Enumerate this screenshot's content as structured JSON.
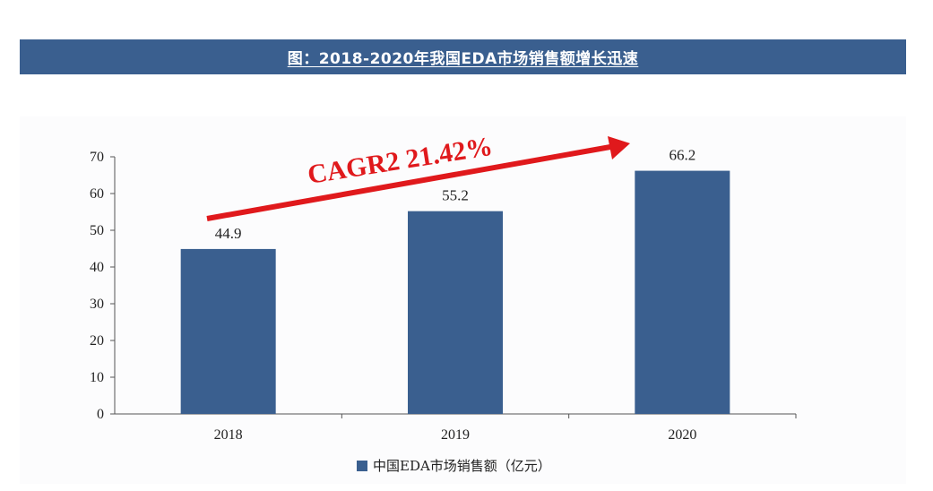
{
  "title": "图：2018-2020年我国EDA市场销售额增长迅速",
  "annotation": "CAGR2 21.42%",
  "colors": {
    "title_bar": "#3a5f8f",
    "bar": "#3a5f8f",
    "arrow": "#e0191c",
    "axis": "#555555"
  },
  "chart_data": {
    "type": "bar",
    "categories": [
      "2018",
      "2019",
      "2020"
    ],
    "series": [
      {
        "name": "中国EDA市场销售额（亿元）",
        "values": [
          44.9,
          55.2,
          66.2
        ],
        "data_labels": [
          "44.9",
          "55.2",
          "66.2"
        ]
      }
    ],
    "ylim": [
      0,
      70
    ],
    "yticks": [
      "0",
      "10",
      "20",
      "30",
      "40",
      "50",
      "60",
      "70"
    ],
    "grid": false,
    "legend_position": "bottom-center",
    "annotation": "CAGR2 21.42%"
  }
}
